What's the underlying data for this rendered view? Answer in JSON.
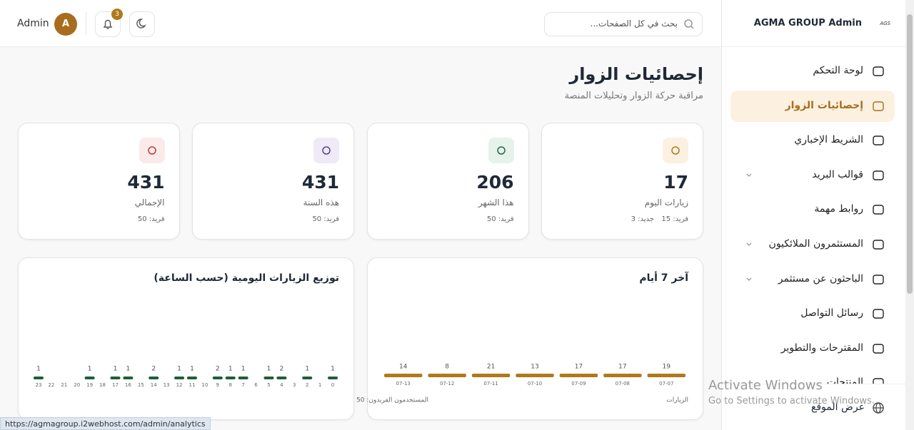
{
  "sidebar": {
    "brand": "AGMA GROUP Admin",
    "logo": "AGS",
    "menu": [
      {
        "label": "لوحة التحكم",
        "active": false,
        "expandable": false
      },
      {
        "label": "إحصائيات الزوار",
        "active": true,
        "expandable": false
      },
      {
        "label": "الشريط الإخباري",
        "active": false,
        "expandable": false
      },
      {
        "label": "قوالب البريد",
        "active": false,
        "expandable": true
      },
      {
        "label": "روابط مهمة",
        "active": false,
        "expandable": false
      },
      {
        "label": "المستثمرون الملائكيون",
        "active": false,
        "expandable": true
      },
      {
        "label": "الباحثون عن مستثمر",
        "active": false,
        "expandable": true
      },
      {
        "label": "رسائل التواصل",
        "active": false,
        "expandable": false
      },
      {
        "label": "المقترحات والتطوير",
        "active": false,
        "expandable": false
      },
      {
        "label": "المنتجات",
        "active": false,
        "expandable": false
      }
    ],
    "footer_link": "عرض الموقع"
  },
  "header": {
    "search_placeholder": "بحث في كل الصفحات...",
    "notifications": 3,
    "avatar": "A",
    "user": "Admin"
  },
  "page": {
    "title": "إحصائيات الزوار",
    "subtitle": "مراقبة حركة الزوار وتحليلات المنصة"
  },
  "stats": [
    {
      "value": 17,
      "label": "زيارات اليوم",
      "details": [
        "فريد: 15",
        "جديد: 3"
      ],
      "color": "#b07a1a",
      "bg": "#fbf1e1"
    },
    {
      "value": 206,
      "label": "هذا الشهر",
      "details": [
        "فريد: 50"
      ],
      "color": "#1e6b45",
      "bg": "#e5f3ea"
    },
    {
      "value": 431,
      "label": "هذه السنة",
      "details": [
        "فريد: 50"
      ],
      "color": "#5b3f9a",
      "bg": "#eeeaf6"
    },
    {
      "value": 431,
      "label": "الإجمالي",
      "details": [
        "فريد: 50"
      ],
      "color": "#b2413d",
      "bg": "#fbeaea"
    }
  ],
  "chart_data": [
    {
      "type": "bar",
      "title": "آخر 7 أيام",
      "categories": [
        "07-07",
        "07-08",
        "07-09",
        "07-10",
        "07-11",
        "07-12",
        "07-13"
      ],
      "series": [
        {
          "name": "الزيارات",
          "color": "#b07a1a",
          "values": [
            19,
            17,
            17,
            13,
            21,
            8,
            14
          ]
        }
      ],
      "note": "المستخدمون الفريدون: 50"
    },
    {
      "type": "bar",
      "title": "توزيع الزيارات اليومية (حسب الساعة)",
      "categories": [
        "0",
        "1",
        "2",
        "3",
        "4",
        "5",
        "6",
        "7",
        "8",
        "9",
        "10",
        "11",
        "12",
        "13",
        "14",
        "15",
        "16",
        "17",
        "18",
        "19",
        "20",
        "21",
        "22",
        "23"
      ],
      "series": [
        {
          "color": "#1e5e3a",
          "values": [
            1,
            0,
            1,
            0,
            2,
            1,
            0,
            1,
            1,
            2,
            0,
            1,
            1,
            0,
            2,
            0,
            1,
            1,
            0,
            1,
            0,
            0,
            0,
            1
          ]
        }
      ]
    }
  ],
  "status_bar": "https://agmagroup.i2webhost.com/admin/analytics",
  "os_overlay": {
    "title": "Activate Windows",
    "subtitle": "Go to Settings to activate Windows."
  }
}
